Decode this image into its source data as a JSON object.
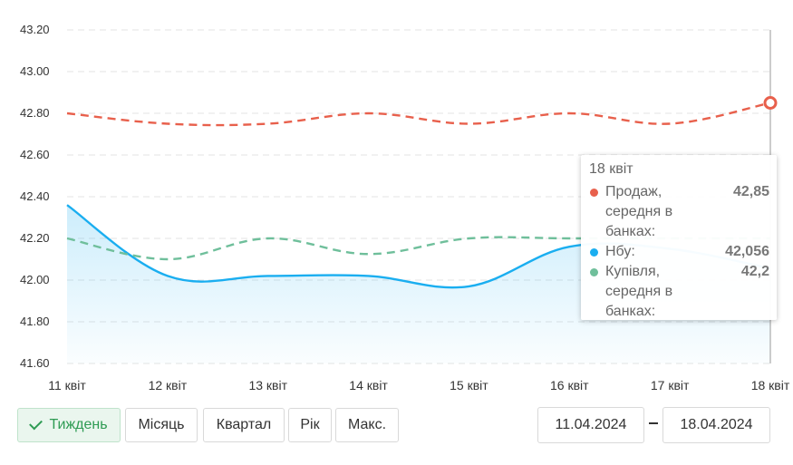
{
  "chart_data": {
    "type": "line",
    "x": [
      "11 квіт",
      "12 квіт",
      "13 квіт",
      "14 квіт",
      "15 квіт",
      "16 квіт",
      "17 квіт",
      "18 квіт"
    ],
    "ylim": [
      41.6,
      43.2
    ],
    "yticks": [
      "43.20",
      "43.00",
      "42.80",
      "42.60",
      "42.40",
      "42.20",
      "42.00",
      "41.80",
      "41.60"
    ],
    "grid": true,
    "series": [
      {
        "name": "Продаж, середня в банках:",
        "color": "#e8604c",
        "style": "dashed",
        "values": [
          42.8,
          42.75,
          42.75,
          42.8,
          42.75,
          42.8,
          42.75,
          42.85
        ]
      },
      {
        "name": "Нбу:",
        "color": "#1aaef0",
        "style": "solid-area",
        "values": [
          42.36,
          42.02,
          42.02,
          42.02,
          41.97,
          42.16,
          42.15,
          42.056
        ]
      },
      {
        "name": "Купівля, середня в банках:",
        "color": "#6fbf9b",
        "style": "dashed",
        "values": [
          42.2,
          42.1,
          42.2,
          42.125,
          42.2,
          42.2,
          42.2,
          42.2
        ]
      }
    ]
  },
  "tooltip": {
    "date": "18 квіт",
    "rows": [
      {
        "name": "Продаж, середня в банках:",
        "value": "42,85",
        "color": "#e8604c"
      },
      {
        "name": "Нбу:",
        "value": "42,056",
        "color": "#1aaef0"
      },
      {
        "name": "Купівля, середня в банках:",
        "value": "42,2",
        "color": "#6fbf9b"
      }
    ]
  },
  "controls": {
    "periods": [
      "Тиждень",
      "Місяць",
      "Квартал",
      "Рік",
      "Макс."
    ],
    "active_period": "Тиждень",
    "date_from": "11.04.2024",
    "date_to": "18.04.2024"
  }
}
